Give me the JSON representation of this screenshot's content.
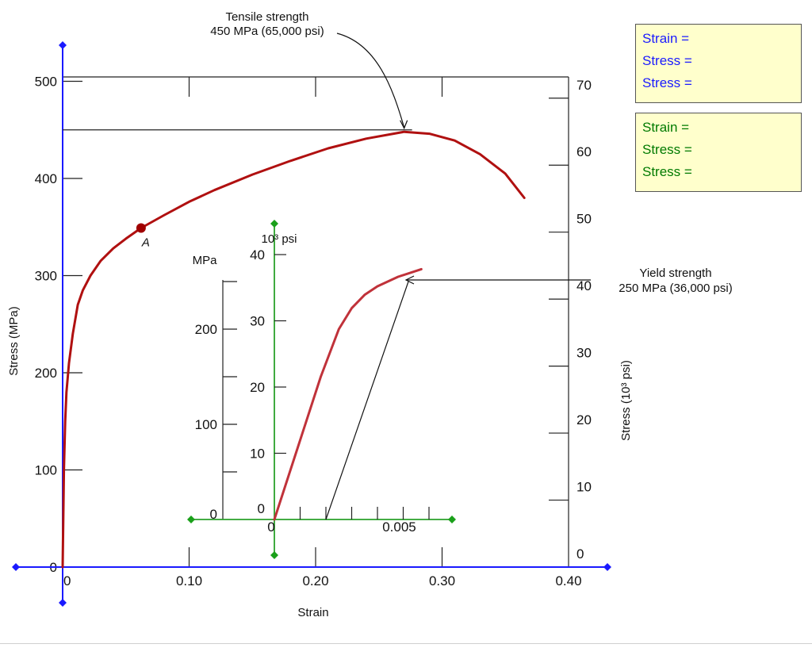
{
  "chart_data": [
    {
      "type": "line",
      "name": "main",
      "xlabel": "Strain",
      "ylabel": "Stress (MPa)",
      "ylabel_right": "Stress (10³ psi)",
      "xlim": [
        0,
        0.4
      ],
      "ylim": [
        0,
        515
      ],
      "x_ticks": [
        0,
        0.1,
        0.2,
        0.3,
        0.4
      ],
      "x_tick_labels": [
        "0",
        "0.10",
        "0.20",
        "0.30",
        "0.40"
      ],
      "y_ticks": [
        0,
        100,
        200,
        300,
        400,
        500
      ],
      "y_tick_labels": [
        "0",
        "100",
        "200",
        "300",
        "400",
        "500"
      ],
      "y_right_ticks": [
        0,
        10,
        20,
        30,
        40,
        50,
        60,
        70
      ],
      "y_right_tick_labels": [
        "0",
        "10",
        "20",
        "30",
        "40",
        "50",
        "60",
        "70"
      ],
      "series": [
        {
          "color": "#b01010",
          "x": [
            0.0,
            0.0005,
            0.001,
            0.002,
            0.003,
            0.005,
            0.008,
            0.012,
            0.016,
            0.022,
            0.03,
            0.04,
            0.05,
            0.062,
            0.08,
            0.1,
            0.12,
            0.15,
            0.18,
            0.21,
            0.24,
            0.27,
            0.29,
            0.31,
            0.33,
            0.35,
            0.365
          ],
          "y": [
            0,
            50,
            100,
            150,
            180,
            210,
            240,
            270,
            285,
            300,
            315,
            328,
            338,
            349,
            362,
            376,
            388,
            404,
            418,
            431,
            441,
            448,
            446,
            439,
            425,
            405,
            380
          ]
        }
      ],
      "point": {
        "label": "A",
        "x": 0.062,
        "y": 349
      },
      "annotations": [
        {
          "text_lines": [
            "Tensile strength",
            "450 MPa (65,000 psi)"
          ],
          "x": 0.27,
          "y": 450
        },
        {
          "text_lines": [
            "Yield strength",
            "250 MPa (36,000 psi)"
          ],
          "y": 250
        }
      ]
    },
    {
      "type": "line",
      "name": "inset",
      "xlim": [
        0,
        0.007
      ],
      "ylim": [
        0,
        300
      ],
      "x_tick_labels": [
        "0",
        "0.005"
      ],
      "y_label_left": "MPa",
      "y_label_right": "10³ psi",
      "y_left_ticks": [
        0,
        100,
        200
      ],
      "y_left_tick_labels": [
        "0",
        "100",
        "200"
      ],
      "y_right_ticks": [
        0,
        10,
        20,
        30,
        40
      ],
      "y_right_tick_labels": [
        "0",
        "10",
        "20",
        "30",
        "40"
      ],
      "series": [
        {
          "color": "#c0323a",
          "x": [
            0,
            0.0018,
            0.0025,
            0.003,
            0.0035,
            0.004,
            0.0048,
            0.0057
          ],
          "y": [
            0,
            150,
            200,
            222,
            236,
            245,
            255,
            263
          ]
        }
      ],
      "offset_line": {
        "x": [
          0.002,
          0.0052
        ],
        "y": [
          0,
          250
        ]
      }
    }
  ],
  "readouts": {
    "blue": {
      "color": "#1a1aff",
      "lines": [
        "Strain =",
        "Stress =",
        "Stress ="
      ]
    },
    "green": {
      "color": "#007a00",
      "lines": [
        "Strain =",
        "Stress =",
        "Stress ="
      ]
    }
  }
}
